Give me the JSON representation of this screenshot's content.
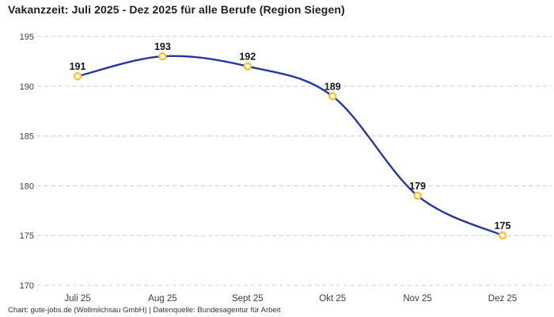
{
  "chart_data": {
    "type": "line",
    "title": "Vakanzzeit: Juli 2025 - Dez 2025 für alle Berufe (Region Siegen)",
    "categories": [
      "Juli 25",
      "Aug 25",
      "Sept 25",
      "Okt 25",
      "Nov 25",
      "Dez 25"
    ],
    "values": [
      191,
      193,
      192,
      189,
      179,
      175
    ],
    "xlabel": "",
    "ylabel": "",
    "ylim": [
      170,
      195
    ],
    "yticks": [
      170,
      175,
      180,
      185,
      190,
      195
    ],
    "grid": "horizontal-dashed",
    "legend": "none",
    "line_style": "smooth",
    "line_color": "#2438a0",
    "marker_color": "#fdc231",
    "marker_fill": "#ffffff",
    "grid_color": "#cccccc",
    "data_label_color": "#151515"
  },
  "footer": {
    "credit": "Chart: gute-jobs.de (Wollmilchsau GmbH) | Datenquelle: Bundesagentur für Arbeit"
  }
}
